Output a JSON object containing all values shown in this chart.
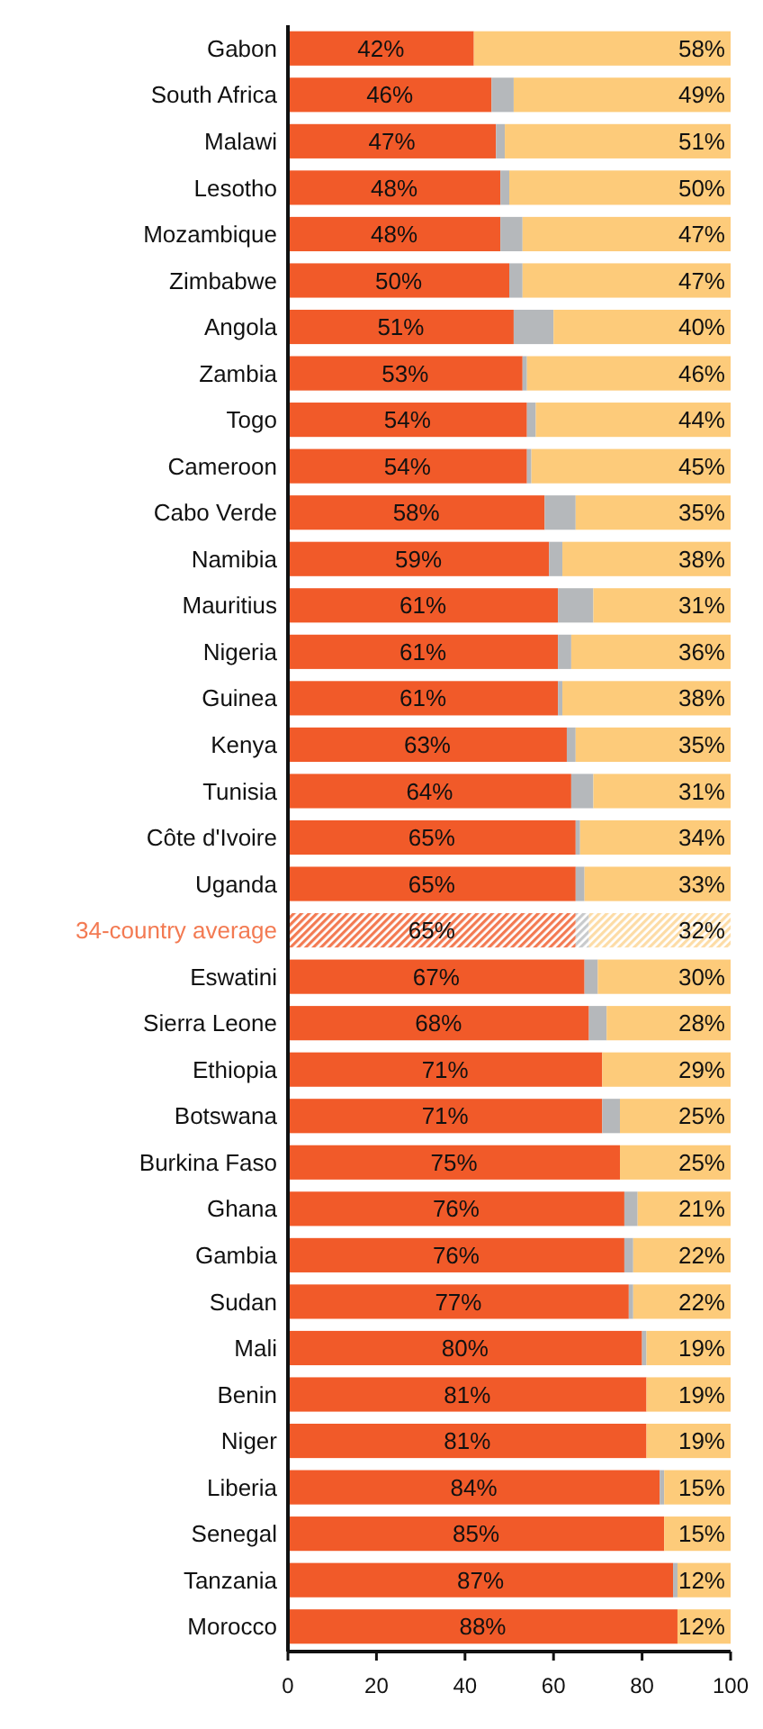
{
  "chart_data": {
    "type": "bar",
    "orientation": "horizontal",
    "stacked": true,
    "categories": [
      "Gabon",
      "South Africa",
      "Malawi",
      "Lesotho",
      "Mozambique",
      "Zimbabwe",
      "Angola",
      "Zambia",
      "Togo",
      "Cameroon",
      "Cabo Verde",
      "Namibia",
      "Mauritius",
      "Nigeria",
      "Guinea",
      "Kenya",
      "Tunisia",
      "Côte d'Ivoire",
      "Uganda",
      "34-country average",
      "Eswatini",
      "Sierra Leone",
      "Ethiopia",
      "Botswana",
      "Burkina Faso",
      "Ghana",
      "Gambia",
      "Sudan",
      "Mali",
      "Benin",
      "Niger",
      "Liberia",
      "Senegal",
      "Tanzania",
      "Morocco"
    ],
    "series": [
      {
        "color": "#f15a29",
        "colors": [
          "#f15a29",
          "#f15a29",
          "#f15a29",
          "#f15a29",
          "#f15a29",
          "#f15a29",
          "#f15a29",
          "#f15a29",
          "#f15a29",
          "#f15a29",
          "#f15a29",
          "#f15a29",
          "#f15a29",
          "#f15a29",
          "#f15a29",
          "#f15a29",
          "#f15a29",
          "#f15a29",
          "#f15a29",
          "#f37a52",
          "#f15a29",
          "#f15a29",
          "#f15a29",
          "#f15a29",
          "#f15a29",
          "#f15a29",
          "#f15a29",
          "#f15a29",
          "#f15a29",
          "#f15a29",
          "#f15a29",
          "#f15a29",
          "#f15a29",
          "#f15a29",
          "#f15a29"
        ],
        "values": [
          42,
          46,
          47,
          48,
          48,
          50,
          51,
          53,
          54,
          54,
          58,
          59,
          61,
          61,
          61,
          63,
          64,
          65,
          65,
          65,
          67,
          68,
          71,
          71,
          75,
          76,
          76,
          77,
          80,
          81,
          81,
          84,
          85,
          87,
          88
        ],
        "value_labels": [
          "42%",
          "46%",
          "47%",
          "48%",
          "48%",
          "50%",
          "51%",
          "53%",
          "54%",
          "54%",
          "58%",
          "59%",
          "61%",
          "61%",
          "61%",
          "63%",
          "64%",
          "65%",
          "65%",
          "65%",
          "67%",
          "68%",
          "71%",
          "71%",
          "75%",
          "76%",
          "76%",
          "77%",
          "80%",
          "81%",
          "81%",
          "84%",
          "85%",
          "87%",
          "88%"
        ]
      },
      {
        "color": "#b5b8bb",
        "colors": [
          "#b5b8bb",
          "#b5b8bb",
          "#b5b8bb",
          "#b5b8bb",
          "#b5b8bb",
          "#b5b8bb",
          "#b5b8bb",
          "#b5b8bb",
          "#b5b8bb",
          "#b5b8bb",
          "#b5b8bb",
          "#b5b8bb",
          "#b5b8bb",
          "#b5b8bb",
          "#b5b8bb",
          "#b5b8bb",
          "#b5b8bb",
          "#b5b8bb",
          "#b5b8bb",
          "#c8cacc",
          "#b5b8bb",
          "#b5b8bb",
          "#b5b8bb",
          "#b5b8bb",
          "#b5b8bb",
          "#b5b8bb",
          "#b5b8bb",
          "#b5b8bb",
          "#b5b8bb",
          "#b5b8bb",
          "#b5b8bb",
          "#b5b8bb",
          "#b5b8bb",
          "#b5b8bb",
          "#b5b8bb"
        ],
        "values": [
          0,
          5,
          2,
          2,
          5,
          3,
          9,
          1,
          2,
          1,
          7,
          3,
          8,
          3,
          1,
          2,
          5,
          1,
          2,
          3,
          3,
          4,
          0,
          4,
          0,
          3,
          2,
          1,
          1,
          0,
          0,
          1,
          0,
          1,
          0
        ]
      },
      {
        "color": "#fdcb7a",
        "colors": [
          "#fdcb7a",
          "#fdcb7a",
          "#fdcb7a",
          "#fdcb7a",
          "#fdcb7a",
          "#fdcb7a",
          "#fdcb7a",
          "#fdcb7a",
          "#fdcb7a",
          "#fdcb7a",
          "#fdcb7a",
          "#fdcb7a",
          "#fdcb7a",
          "#fdcb7a",
          "#fdcb7a",
          "#fdcb7a",
          "#fdcb7a",
          "#fdcb7a",
          "#fdcb7a",
          "#fddca6",
          "#fdcb7a",
          "#fdcb7a",
          "#fdcb7a",
          "#fdcb7a",
          "#fdcb7a",
          "#fdcb7a",
          "#fdcb7a",
          "#fdcb7a",
          "#fdcb7a",
          "#fdcb7a",
          "#fdcb7a",
          "#fdcb7a",
          "#fdcb7a",
          "#fdcb7a",
          "#fdcb7a"
        ],
        "values": [
          58,
          49,
          51,
          50,
          47,
          47,
          40,
          46,
          44,
          45,
          35,
          38,
          31,
          36,
          38,
          35,
          31,
          34,
          33,
          32,
          30,
          28,
          29,
          25,
          25,
          21,
          22,
          22,
          19,
          19,
          19,
          15,
          15,
          12,
          12
        ],
        "value_labels": [
          "58%",
          "49%",
          "51%",
          "50%",
          "47%",
          "47%",
          "40%",
          "46%",
          "44%",
          "45%",
          "35%",
          "38%",
          "31%",
          "36%",
          "38%",
          "35%",
          "31%",
          "34%",
          "33%",
          "32%",
          "30%",
          "28%",
          "29%",
          "25%",
          "25%",
          "21%",
          "22%",
          "22%",
          "19%",
          "19%",
          "19%",
          "15%",
          "15%",
          "12%",
          "12%"
        ]
      }
    ],
    "xlim": [
      0,
      100
    ],
    "xticks": [
      0,
      20,
      40,
      60,
      80,
      100
    ],
    "grid": false
  }
}
